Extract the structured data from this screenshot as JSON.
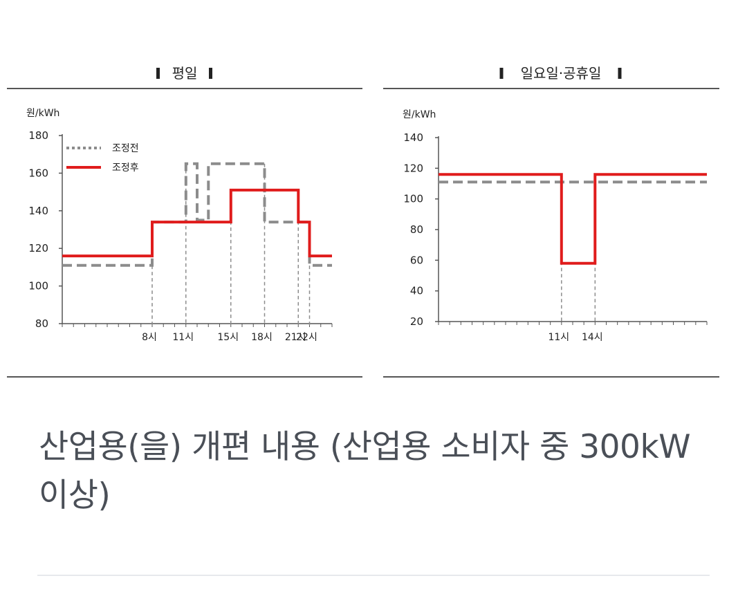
{
  "chart_data": [
    {
      "type": "line",
      "title": "평일",
      "unit_label": "원/kWh",
      "ylim": [
        80,
        180
      ],
      "yticks": [
        "80",
        "100",
        "120",
        "140",
        "160",
        "180"
      ],
      "xlim": [
        0,
        24
      ],
      "xticks": [
        {
          "x": 8,
          "label": "8시"
        },
        {
          "x": 11,
          "label": "11시"
        },
        {
          "x": 15,
          "label": "15시"
        },
        {
          "x": 18,
          "label": "18시"
        },
        {
          "x": 21,
          "label": "21시"
        },
        {
          "x": 22,
          "label": "22시"
        }
      ],
      "legend_position": "top-left",
      "series": [
        {
          "name": "조정전",
          "style": "dashed",
          "color": "#8c8c8c",
          "points": [
            [
              0,
              111
            ],
            [
              8,
              111
            ],
            [
              8,
              134
            ],
            [
              11,
              134
            ],
            [
              11,
              165
            ],
            [
              12,
              165
            ],
            [
              12,
              135
            ],
            [
              13,
              135
            ],
            [
              13,
              165
            ],
            [
              18,
              165
            ],
            [
              18,
              134
            ],
            [
              21,
              134
            ],
            [
              21,
              134
            ],
            [
              22,
              134
            ],
            [
              22,
              111
            ],
            [
              24,
              111
            ]
          ]
        },
        {
          "name": "조정후",
          "style": "solid",
          "color": "#e01c1c",
          "points": [
            [
              0,
              116
            ],
            [
              8,
              116
            ],
            [
              8,
              134
            ],
            [
              15,
              134
            ],
            [
              15,
              151
            ],
            [
              21,
              151
            ],
            [
              21,
              134
            ],
            [
              22,
              134
            ],
            [
              22,
              116
            ],
            [
              24,
              116
            ]
          ]
        }
      ],
      "guides": [
        8,
        11,
        15,
        18,
        21,
        22
      ]
    },
    {
      "type": "line",
      "title": "일요일·공휴일",
      "unit_label": "원/kWh",
      "ylim": [
        20,
        140
      ],
      "yticks": [
        "20",
        "40",
        "60",
        "80",
        "100",
        "120",
        "140"
      ],
      "xlim": [
        0,
        24
      ],
      "xticks": [
        {
          "x": 11,
          "label": "11시"
        },
        {
          "x": 14,
          "label": "14시"
        }
      ],
      "series": [
        {
          "name": "조정전",
          "style": "dashed",
          "color": "#8c8c8c",
          "points": [
            [
              0,
              111
            ],
            [
              24,
              111
            ]
          ]
        },
        {
          "name": "조정후",
          "style": "solid",
          "color": "#e01c1c",
          "points": [
            [
              0,
              116
            ],
            [
              11,
              116
            ],
            [
              11,
              58
            ],
            [
              14,
              58
            ],
            [
              14,
              116
            ],
            [
              24,
              116
            ]
          ]
        }
      ],
      "guides": [
        11,
        14
      ]
    }
  ],
  "caption": "산업용(을) 개편 내용 (산업용 소비자 중 300kW 이상)"
}
